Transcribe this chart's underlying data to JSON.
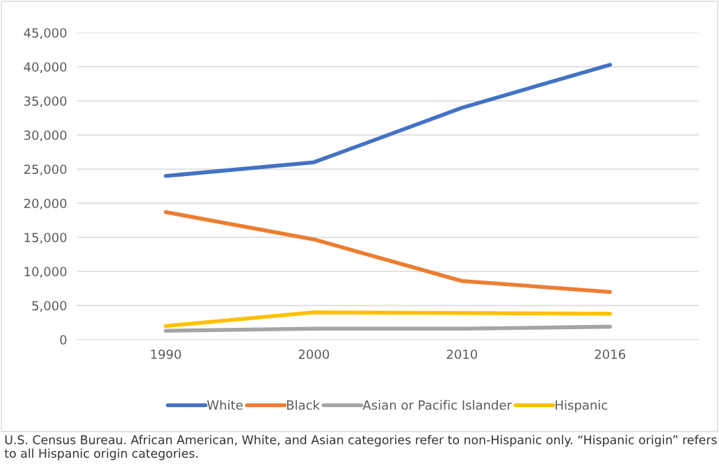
{
  "chart_data": {
    "type": "line",
    "categories": [
      "1990",
      "2000",
      "2010",
      "2016"
    ],
    "series": [
      {
        "name": "White",
        "color": "#4472c4",
        "values": [
          24000,
          26000,
          34000,
          40300
        ]
      },
      {
        "name": "Black",
        "color": "#ed7d31",
        "values": [
          18700,
          14700,
          8600,
          7000
        ]
      },
      {
        "name": "Asian or Pacific Islander",
        "color": "#a5a5a5",
        "values": [
          1300,
          1600,
          1600,
          1900
        ]
      },
      {
        "name": "Hispanic",
        "color": "#ffc000",
        "values": [
          2000,
          4000,
          3900,
          3800
        ]
      }
    ],
    "ylim": [
      0,
      45000
    ],
    "yticks": [
      {
        "value": 0,
        "label": "0"
      },
      {
        "value": 5000,
        "label": "5,000"
      },
      {
        "value": 10000,
        "label": "10,000"
      },
      {
        "value": 15000,
        "label": "15,000"
      },
      {
        "value": 20000,
        "label": "20,000"
      },
      {
        "value": 25000,
        "label": "25,000"
      },
      {
        "value": 30000,
        "label": "30,000"
      },
      {
        "value": 35000,
        "label": "35,000"
      },
      {
        "value": 40000,
        "label": "40,000"
      },
      {
        "value": 45000,
        "label": "45,000"
      }
    ],
    "grid": "y",
    "legend": "bottom",
    "marker": "none",
    "line_style": "solid",
    "annotations": [
      "U.S. Census Bureau. African American, White, and Asian categories refer to non-Hispanic only. “Hispanic origin” refers to all Hispanic origin categories."
    ]
  }
}
